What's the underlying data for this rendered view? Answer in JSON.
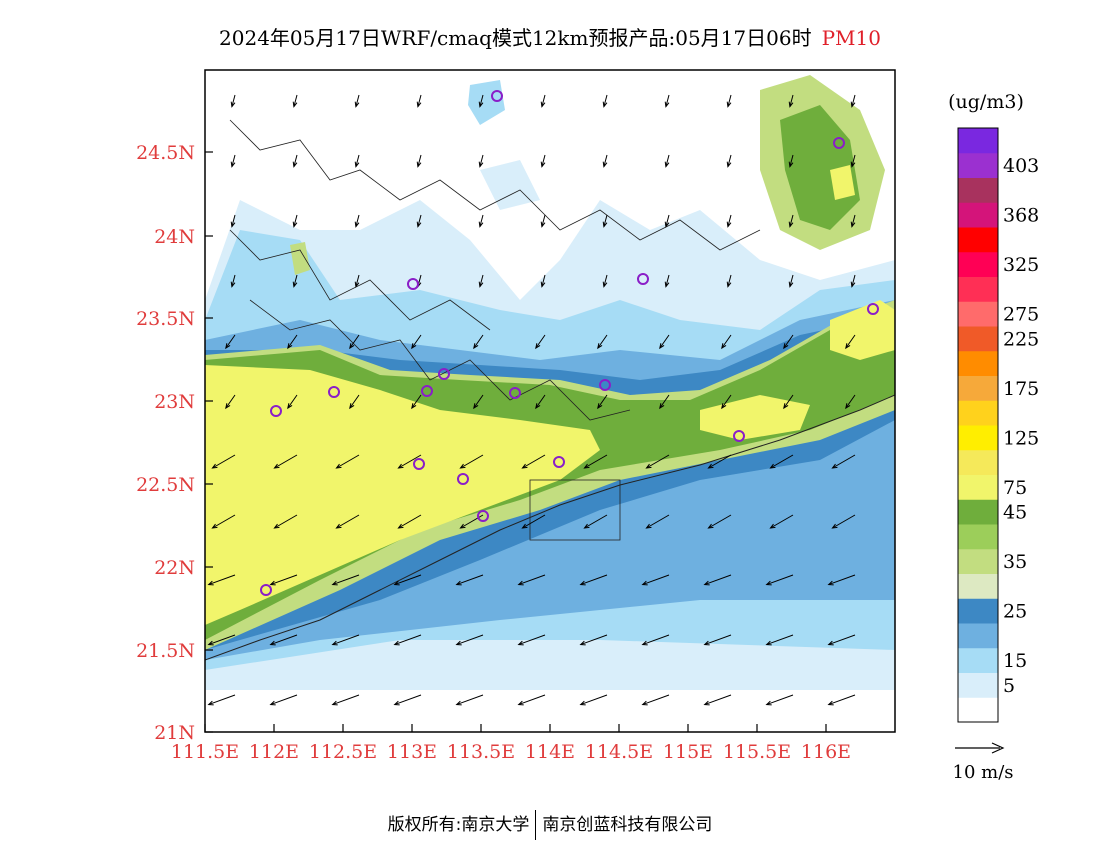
{
  "title": {
    "main": "2024年05月17日WRF/cmaq模式12km预报产品:05月17日06时",
    "variable": "PM10"
  },
  "colorbar": {
    "unit_label": "(ug/m3)",
    "bins": [
      {
        "color": "#ffffff"
      },
      {
        "color": "#d9eefa",
        "label": "5"
      },
      {
        "color": "#a6dcf5",
        "label": "15"
      },
      {
        "color": "#6eb0e0"
      },
      {
        "color": "#3d88c4",
        "label": "25"
      },
      {
        "color": "#dde9c2"
      },
      {
        "color": "#c2dd80",
        "label": "35"
      },
      {
        "color": "#9cce5a"
      },
      {
        "color": "#6fae3c",
        "label": "45"
      },
      {
        "color": "#f1f56b",
        "label": "75"
      },
      {
        "color": "#f5e95a"
      },
      {
        "color": "#ffee00",
        "label": "125"
      },
      {
        "color": "#ffd21c"
      },
      {
        "color": "#f6a93a",
        "label": "175"
      },
      {
        "color": "#ff8c00"
      },
      {
        "color": "#f05a28",
        "label": "225"
      },
      {
        "color": "#ff6b6b",
        "label": "275"
      },
      {
        "color": "#ff2f55"
      },
      {
        "color": "#ff0055",
        "label": "325"
      },
      {
        "color": "#ff0000"
      },
      {
        "color": "#d4147a",
        "label": "368"
      },
      {
        "color": "#a8325e"
      },
      {
        "color": "#9b30d0",
        "label": "403"
      },
      {
        "color": "#7a28e0"
      }
    ]
  },
  "wind_legend": {
    "label": "10  m/s"
  },
  "axes": {
    "lat_ticks": [
      "24.5N",
      "24N",
      "23.5N",
      "23N",
      "22.5N",
      "22N",
      "21.5N",
      "21N"
    ],
    "lon_ticks": [
      "111.5E",
      "112E",
      "112.5E",
      "113E",
      "113.5E",
      "114E",
      "114.5E",
      "115E",
      "115.5E",
      "116E"
    ]
  },
  "footer": {
    "left": "版权所有:南京大学",
    "right": "南京创蓝科技有限公司"
  },
  "colors": {
    "tick_label": "#e03c3c",
    "station_marker": "#8a1ec8"
  }
}
